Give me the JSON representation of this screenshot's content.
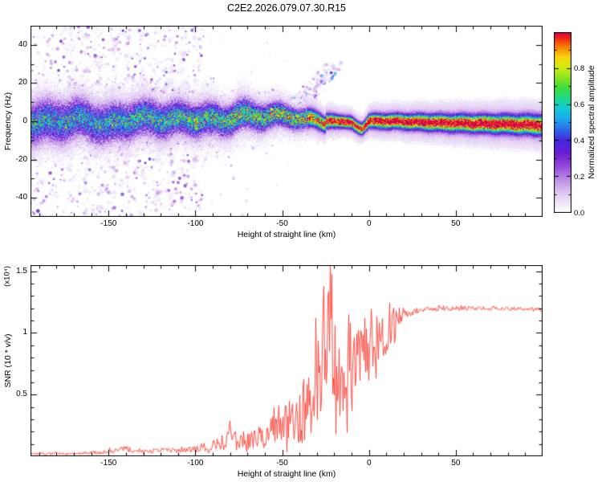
{
  "chart_data": [
    {
      "type": "heatmap",
      "name": "radio-occultation-spectrogram",
      "title": "C2E2.2026.079.07.30.R15",
      "xlabel": "Height of straight line (km)",
      "ylabel": "Frequency (Hz)",
      "xlim": [
        -195,
        100
      ],
      "ylim": [
        -50,
        50
      ],
      "xticks": [
        -150,
        -100,
        -50,
        0,
        50
      ],
      "xtick_labels": [
        "-150",
        "-100",
        "-50",
        "0",
        "50"
      ],
      "yticks": [
        -40,
        -20,
        0,
        20,
        40
      ],
      "ytick_labels": [
        "-40",
        "-20",
        "0",
        "20",
        "40"
      ],
      "colorbar": {
        "label": "Normalized spectral amplitude",
        "min": 0,
        "max": 1,
        "ticks": [
          0,
          0.2,
          0.4,
          0.6,
          0.8
        ],
        "tick_labels": [
          "0.0",
          "0.2",
          "0.4",
          "0.6",
          "0.8"
        ]
      },
      "colormap": [
        [
          0.0,
          "#ffffff"
        ],
        [
          0.04,
          "#f3ecfa"
        ],
        [
          0.1,
          "#e3cdf3"
        ],
        [
          0.18,
          "#bd8fe6"
        ],
        [
          0.26,
          "#9146da"
        ],
        [
          0.33,
          "#6a1fd2"
        ],
        [
          0.4,
          "#4328dd"
        ],
        [
          0.46,
          "#2e6ae8"
        ],
        [
          0.52,
          "#1fa8ee"
        ],
        [
          0.58,
          "#12cdd4"
        ],
        [
          0.63,
          "#1ed893"
        ],
        [
          0.69,
          "#3fdc3d"
        ],
        [
          0.75,
          "#8ae61e"
        ],
        [
          0.81,
          "#d6ec12"
        ],
        [
          0.86,
          "#f6d60b"
        ],
        [
          0.9,
          "#f89f06"
        ],
        [
          0.94,
          "#f55b0a"
        ],
        [
          0.97,
          "#ee2619"
        ],
        [
          1.0,
          "#d6004f"
        ]
      ],
      "signal_trace": {
        "x": [
          -195,
          -180,
          -165,
          -150,
          -135,
          -120,
          -105,
          -95,
          -85,
          -75,
          -65,
          -55,
          -45,
          -38,
          -30,
          -25,
          -20,
          -15,
          -10,
          -7,
          -4,
          -2,
          0,
          5,
          15,
          30,
          50,
          75,
          100
        ],
        "freq": [
          0,
          -1,
          1,
          -1,
          2,
          0,
          1,
          2,
          1,
          3,
          2,
          2,
          3,
          2,
          1,
          0,
          0,
          0,
          -1,
          -3,
          -4,
          -2,
          0,
          0,
          0,
          -0.5,
          -1,
          -1.5,
          -2
        ],
        "amplitude": [
          0.5,
          0.5,
          0.5,
          0.52,
          0.55,
          0.55,
          0.58,
          0.6,
          0.62,
          0.65,
          0.68,
          0.72,
          0.78,
          0.82,
          0.88,
          0.92,
          0.96,
          1,
          1,
          0.95,
          0.9,
          0.95,
          1,
          1,
          1,
          1,
          1,
          1,
          1
        ],
        "width_hz": [
          6.5,
          6.5,
          6,
          6,
          5.5,
          5.5,
          5,
          5,
          4.5,
          4.5,
          4,
          3.5,
          3,
          2.8,
          2.5,
          2.2,
          2,
          1.8,
          1.8,
          1.8,
          1.8,
          1.8,
          2.0,
          2.2,
          2.2,
          2.4,
          2.6,
          2.8,
          3
        ]
      },
      "noise": {
        "seed": 1337,
        "speckle_region_max_h": -95,
        "streaks": [
          -172,
          -163,
          -155,
          -147,
          -139,
          -131,
          -122,
          -114,
          -107,
          -100
        ],
        "plume": {
          "x0": -60,
          "x1": -20,
          "f0": 4,
          "f1": 30
        }
      }
    },
    {
      "type": "line",
      "name": "snr-profile",
      "xlabel": "Height of straight line (km)",
      "ylabel": "SNR (10 * v/v)",
      "scale_label": "(x10⁴)",
      "color": "#ff3b30",
      "xlim": [
        -195,
        100
      ],
      "ylim": [
        0,
        1.55
      ],
      "xticks": [
        -150,
        -100,
        -50,
        0,
        50
      ],
      "xtick_labels": [
        "-150",
        "-100",
        "-50",
        "0",
        "50"
      ],
      "yticks": [
        0.5,
        1,
        1.5
      ],
      "ytick_labels": [
        "0.5",
        "1",
        "1.5"
      ],
      "anchors": {
        "x": [
          -195,
          -170,
          -155,
          -145,
          -141,
          -136,
          -125,
          -112,
          -100,
          -92,
          -85,
          -78,
          -74,
          -70,
          -65,
          -60,
          -55,
          -50,
          -46,
          -42,
          -38,
          -34,
          -30,
          -27,
          -24,
          -21,
          -18,
          -15,
          -13,
          -10,
          -7,
          -4,
          0,
          4,
          8,
          12,
          16,
          20,
          25,
          30,
          40,
          60,
          80,
          100
        ],
        "y": [
          0.02,
          0.02,
          0.03,
          0.05,
          0.07,
          0.04,
          0.04,
          0.05,
          0.06,
          0.08,
          0.1,
          0.16,
          0.13,
          0.12,
          0.14,
          0.17,
          0.2,
          0.24,
          0.28,
          0.35,
          0.4,
          0.45,
          0.55,
          0.7,
          0.85,
          0.9,
          0.75,
          0.55,
          0.6,
          0.7,
          0.75,
          0.72,
          0.8,
          0.9,
          0.98,
          1.02,
          1.08,
          1.12,
          1.17,
          1.19,
          1.2,
          1.2,
          1.2,
          1.19
        ],
        "jitter": [
          0.01,
          0.01,
          0.015,
          0.02,
          0.025,
          0.015,
          0.015,
          0.02,
          0.03,
          0.04,
          0.05,
          0.12,
          0.08,
          0.07,
          0.09,
          0.1,
          0.13,
          0.15,
          0.18,
          0.28,
          0.3,
          0.28,
          0.35,
          0.45,
          0.55,
          0.55,
          0.45,
          0.25,
          0.3,
          0.35,
          0.3,
          0.28,
          0.25,
          0.2,
          0.18,
          0.15,
          0.1,
          0.06,
          0.035,
          0.02,
          0.015,
          0.015,
          0.015,
          0.015
        ]
      },
      "spikes": [
        {
          "x": -22.5,
          "y": 1.55
        },
        {
          "x": -26,
          "y": 1.38
        },
        {
          "x": -24,
          "y": 1.3
        },
        {
          "x": -31,
          "y": 1.12
        },
        {
          "x": -12,
          "y": 1.15
        },
        {
          "x": -5,
          "y": 1.02
        }
      ]
    }
  ]
}
